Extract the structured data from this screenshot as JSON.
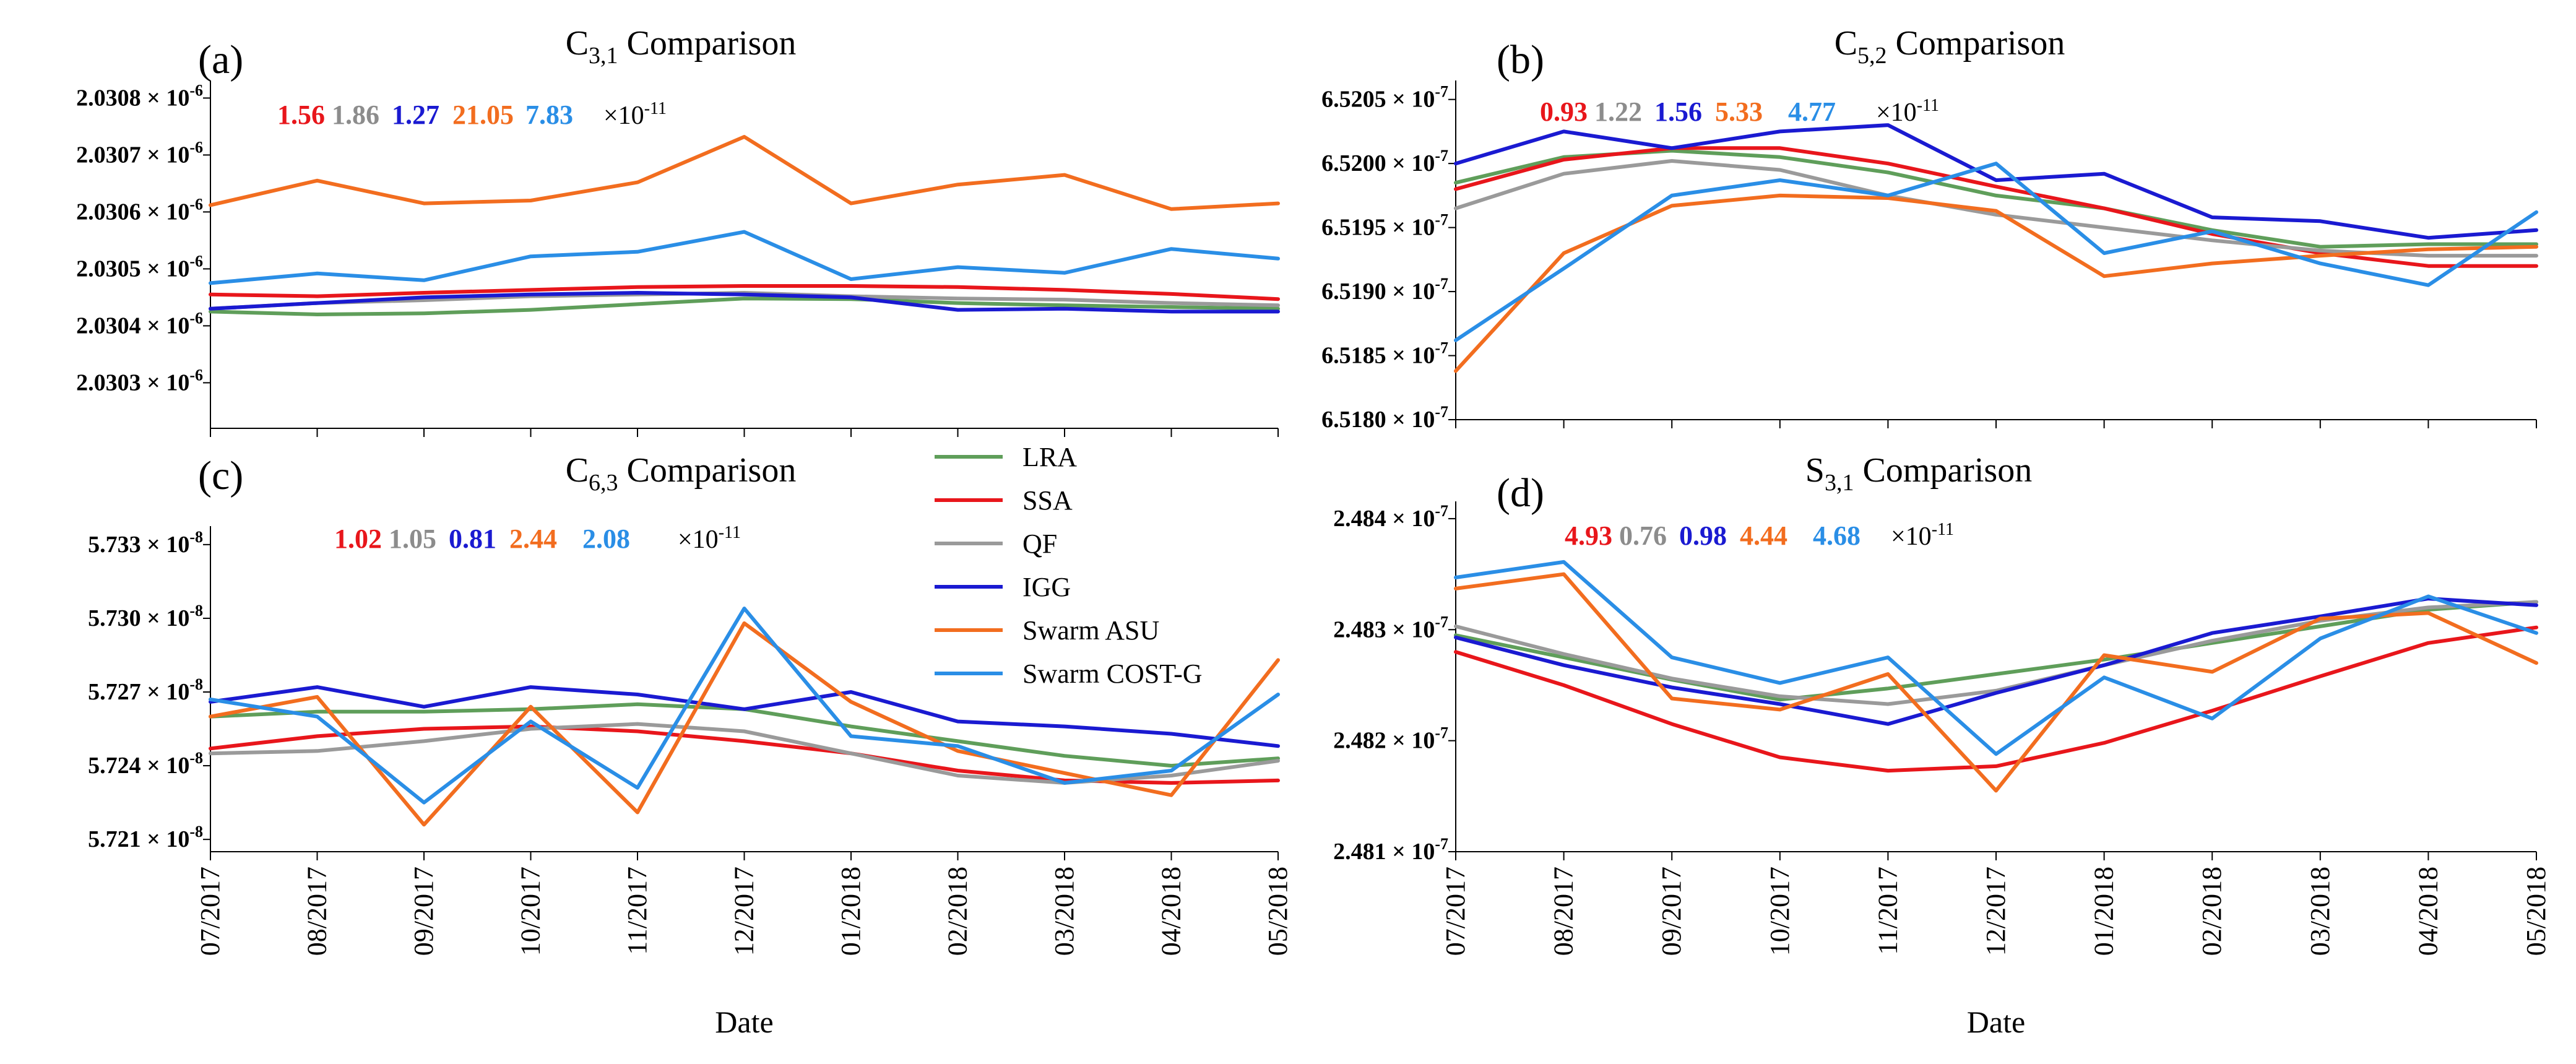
{
  "figure": {
    "months": [
      "07/2017",
      "08/2017",
      "09/2017",
      "10/2017",
      "11/2017",
      "12/2017",
      "01/2018",
      "02/2018",
      "03/2018",
      "04/2018",
      "05/2018"
    ],
    "xlabel": "Date",
    "exponent_label": "×10",
    "exponent_power": "-11"
  },
  "legend": [
    {
      "name": "LRA",
      "color": "#5f9e5a"
    },
    {
      "name": "SSA",
      "color": "#e8161b"
    },
    {
      "name": "QF",
      "color": "#9a9a9a"
    },
    {
      "name": "IGG",
      "color": "#1a1ad1"
    },
    {
      "name": "Swarm ASU",
      "color": "#f26d1f"
    },
    {
      "name": "Swarm COST-G",
      "color": "#2a8ee6"
    }
  ],
  "chart_data": [
    {
      "type": "line",
      "panel": "(a)",
      "title": "C",
      "title_sub": "3,1",
      "title_rest": " Comparison",
      "yticks": [
        {
          "mant": "2.0303",
          "exp": "-6",
          "value": 2.0303
        },
        {
          "mant": "2.0304",
          "exp": "-6",
          "value": 2.0304
        },
        {
          "mant": "2.0305",
          "exp": "-6",
          "value": 2.0305
        },
        {
          "mant": "2.0306",
          "exp": "-6",
          "value": 2.0306
        },
        {
          "mant": "2.0307",
          "exp": "-6",
          "value": 2.0307
        },
        {
          "mant": "2.0308",
          "exp": "-6",
          "value": 2.0308
        }
      ],
      "ylim": [
        2.03022,
        2.03082
      ],
      "stats": [
        "1.56",
        "1.86",
        "1.27",
        "21.05",
        "7.83"
      ],
      "series": [
        {
          "name": "LRA",
          "values": [
            2.030425,
            2.03042,
            2.030422,
            2.030428,
            2.030438,
            2.030448,
            2.030447,
            2.03044,
            2.030436,
            2.030433,
            2.03043
          ]
        },
        {
          "name": "SSA",
          "values": [
            2.030455,
            2.030452,
            2.030458,
            2.030463,
            2.030468,
            2.03047,
            2.03047,
            2.030468,
            2.030463,
            2.030456,
            2.030447
          ]
        },
        {
          "name": "QF",
          "values": [
            2.03043,
            2.03044,
            2.030445,
            2.030452,
            2.030455,
            2.030458,
            2.030452,
            2.030448,
            2.030446,
            2.03044,
            2.030436
          ]
        },
        {
          "name": "IGG",
          "values": [
            2.03043,
            2.03044,
            2.03045,
            2.030455,
            2.030458,
            2.030455,
            2.03045,
            2.030428,
            2.03043,
            2.030425,
            2.030425
          ]
        },
        {
          "name": "Swarm ASU",
          "values": [
            2.030612,
            2.030655,
            2.030615,
            2.03062,
            2.030652,
            2.030732,
            2.030615,
            2.030648,
            2.030665,
            2.030605,
            2.030615
          ]
        },
        {
          "name": "Swarm COST-G",
          "values": [
            2.030475,
            2.030492,
            2.03048,
            2.030522,
            2.03053,
            2.030565,
            2.030482,
            2.030503,
            2.030493,
            2.030535,
            2.030518
          ]
        }
      ]
    },
    {
      "type": "line",
      "panel": "(b)",
      "title": "C",
      "title_sub": "5,2",
      "title_rest": " Comparison",
      "yticks": [
        {
          "mant": "6.5180",
          "exp": "-7",
          "value": 6.518
        },
        {
          "mant": "6.5185",
          "exp": "-7",
          "value": 6.5185
        },
        {
          "mant": "6.5190",
          "exp": "-7",
          "value": 6.519
        },
        {
          "mant": "6.5195",
          "exp": "-7",
          "value": 6.5195
        },
        {
          "mant": "6.5200",
          "exp": "-7",
          "value": 6.52
        },
        {
          "mant": "6.5205",
          "exp": "-7",
          "value": 6.5205
        }
      ],
      "ylim": [
        6.518,
        6.5206
      ],
      "stats": [
        "0.93",
        "1.22",
        "1.56",
        "5.33",
        "4.77"
      ],
      "series": [
        {
          "name": "LRA",
          "values": [
            6.51985,
            6.52005,
            6.5201,
            6.52005,
            6.51993,
            6.51975,
            6.51965,
            6.51948,
            6.51935,
            6.51937,
            6.51937
          ]
        },
        {
          "name": "SSA",
          "values": [
            6.5198,
            6.52003,
            6.52012,
            6.52012,
            6.52,
            6.51982,
            6.51965,
            6.51945,
            6.5193,
            6.5192,
            6.5192
          ]
        },
        {
          "name": "QF",
          "values": [
            6.51965,
            6.51992,
            6.52002,
            6.51995,
            6.51975,
            6.5196,
            6.5195,
            6.5194,
            6.51932,
            6.51928,
            6.51928
          ]
        },
        {
          "name": "IGG",
          "values": [
            6.52,
            6.52025,
            6.52012,
            6.52025,
            6.5203,
            6.51987,
            6.51992,
            6.51958,
            6.51955,
            6.51942,
            6.51948
          ]
        },
        {
          "name": "Swarm ASU",
          "values": [
            6.51838,
            6.5193,
            6.51967,
            6.51975,
            6.51973,
            6.51963,
            6.51912,
            6.51922,
            6.51928,
            6.51933,
            6.51935
          ]
        },
        {
          "name": "Swarm COST-G",
          "values": [
            6.51862,
            6.51918,
            6.51975,
            6.51987,
            6.51975,
            6.52,
            6.5193,
            6.51947,
            6.51922,
            6.51905,
            6.51962
          ]
        }
      ]
    },
    {
      "type": "line",
      "panel": "(c)",
      "title": "C",
      "title_sub": "6,3",
      "title_rest": " Comparison",
      "yticks": [
        {
          "mant": "5.721",
          "exp": "-8",
          "value": 5.721
        },
        {
          "mant": "5.724",
          "exp": "-8",
          "value": 5.724
        },
        {
          "mant": "5.727",
          "exp": "-8",
          "value": 5.727
        },
        {
          "mant": "5.730",
          "exp": "-8",
          "value": 5.73
        },
        {
          "mant": "5.733",
          "exp": "-8",
          "value": 5.733
        }
      ],
      "ylim": [
        5.7205,
        5.7335
      ],
      "stats": [
        "1.02",
        "1.05",
        "0.81",
        "2.44",
        "2.08"
      ],
      "series": [
        {
          "name": "LRA",
          "values": [
            5.726,
            5.7262,
            5.7262,
            5.7263,
            5.7265,
            5.7263,
            5.7256,
            5.725,
            5.7244,
            5.724,
            5.7243
          ]
        },
        {
          "name": "SSA",
          "values": [
            5.7247,
            5.7252,
            5.7255,
            5.7256,
            5.7254,
            5.725,
            5.7245,
            5.7238,
            5.7234,
            5.7233,
            5.7234
          ]
        },
        {
          "name": "QF",
          "values": [
            5.7245,
            5.7246,
            5.725,
            5.7255,
            5.7257,
            5.7254,
            5.7245,
            5.7236,
            5.7233,
            5.7236,
            5.7242
          ]
        },
        {
          "name": "IGG",
          "values": [
            5.7266,
            5.7272,
            5.7264,
            5.7272,
            5.7269,
            5.7263,
            5.727,
            5.7258,
            5.7256,
            5.7253,
            5.7248
          ]
        },
        {
          "name": "Swarm ASU",
          "values": [
            5.726,
            5.7268,
            5.7216,
            5.7264,
            5.7221,
            5.7298,
            5.7266,
            5.7246,
            5.7237,
            5.7228,
            5.7283
          ]
        },
        {
          "name": "Swarm COST-G",
          "values": [
            5.7267,
            5.726,
            5.7225,
            5.7258,
            5.7231,
            5.7304,
            5.7252,
            5.7248,
            5.7233,
            5.7238,
            5.7269
          ]
        }
      ]
    },
    {
      "type": "line",
      "panel": "(d)",
      "title": "S",
      "title_sub": "3,1",
      "title_rest": " Comparison",
      "yticks": [
        {
          "mant": "2.481",
          "exp": "-7",
          "value": 2.481
        },
        {
          "mant": "2.482",
          "exp": "-7",
          "value": 2.482
        },
        {
          "mant": "2.483",
          "exp": "-7",
          "value": 2.483
        },
        {
          "mant": "2.484",
          "exp": "-7",
          "value": 2.484
        }
      ],
      "ylim": [
        2.481,
        2.4841
      ],
      "stats": [
        "4.93",
        "0.76",
        "0.98",
        "4.44",
        "4.68"
      ],
      "series": [
        {
          "name": "LRA",
          "values": [
            2.48295,
            2.48275,
            2.48255,
            2.48237,
            2.48247,
            2.4826,
            2.48273,
            2.48288,
            2.48303,
            2.48318,
            2.48325
          ]
        },
        {
          "name": "SSA",
          "values": [
            2.4828,
            2.4825,
            2.48215,
            2.48185,
            2.48173,
            2.48177,
            2.48198,
            2.48227,
            2.48258,
            2.48288,
            2.48302
          ]
        },
        {
          "name": "QF",
          "values": [
            2.48303,
            2.48278,
            2.48256,
            2.4824,
            2.48233,
            2.48245,
            2.48268,
            2.4829,
            2.48308,
            2.4832,
            2.48325
          ]
        },
        {
          "name": "IGG",
          "values": [
            2.48293,
            2.48268,
            2.48248,
            2.48233,
            2.48215,
            2.48243,
            2.48268,
            2.48297,
            2.48312,
            2.48328,
            2.48322
          ]
        },
        {
          "name": "Swarm ASU",
          "values": [
            2.48337,
            2.4835,
            2.48238,
            2.48228,
            2.4826,
            2.48155,
            2.48277,
            2.48262,
            2.4831,
            2.48315,
            2.4827
          ]
        },
        {
          "name": "Swarm COST-G",
          "values": [
            2.48347,
            2.48361,
            2.48275,
            2.48252,
            2.48275,
            2.48188,
            2.48257,
            2.4822,
            2.48292,
            2.4833,
            2.48297
          ]
        }
      ]
    }
  ]
}
